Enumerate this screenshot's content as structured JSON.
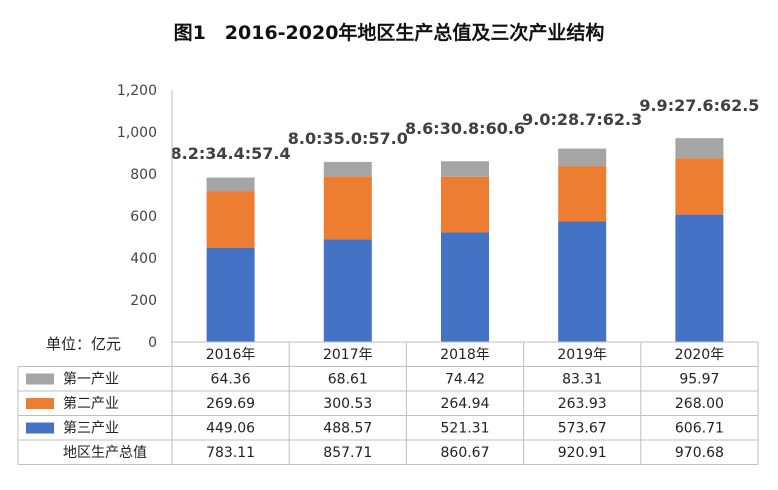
{
  "chart_data": {
    "type": "bar",
    "stacked": true,
    "title": "图1　2016-2020年地区生产总值及三次产业结构",
    "unit_label": "单位：亿元",
    "categories": [
      "2016年",
      "2017年",
      "2018年",
      "2019年",
      "2020年"
    ],
    "ylim": [
      0,
      1200
    ],
    "yticks": [
      "0",
      "200",
      "400",
      "600",
      "800",
      "1,000",
      "1,200"
    ],
    "ytick_values": [
      0,
      200,
      400,
      600,
      800,
      1000,
      1200
    ],
    "ratio_labels": [
      "8.2:34.4:57.4",
      "8.0:35.0:57.0",
      "8.6:30.8:60.6",
      "9.0:28.7:62.3",
      "9.9:27.6:62.5"
    ],
    "series": [
      {
        "name": "第三产业",
        "color": "#4472C4",
        "values": [
          449.06,
          488.57,
          521.31,
          573.67,
          606.71
        ],
        "labels": [
          "449.06",
          "488.57",
          "521.31",
          "573.67",
          "606.71"
        ]
      },
      {
        "name": "第二产业",
        "color": "#ED7D31",
        "values": [
          269.69,
          300.53,
          264.94,
          263.93,
          268.0
        ],
        "labels": [
          "269.69",
          "300.53",
          "264.94",
          "263.93",
          "268.00"
        ]
      },
      {
        "name": "第一产业",
        "color": "#A5A5A5",
        "values": [
          64.36,
          68.61,
          74.42,
          83.31,
          95.97
        ],
        "labels": [
          "64.36",
          "68.61",
          "74.42",
          "83.31",
          "95.97"
        ]
      }
    ],
    "table_rows": [
      {
        "name": "第一产业",
        "color": "#A5A5A5",
        "cells": [
          "64.36",
          "68.61",
          "74.42",
          "83.31",
          "95.97"
        ]
      },
      {
        "name": "第二产业",
        "color": "#ED7D31",
        "cells": [
          "269.69",
          "300.53",
          "264.94",
          "263.93",
          "268.00"
        ]
      },
      {
        "name": "第三产业",
        "color": "#4472C4",
        "cells": [
          "449.06",
          "488.57",
          "521.31",
          "573.67",
          "606.71"
        ]
      },
      {
        "name": "地区生产总值",
        "color": "",
        "cells": [
          "783.11",
          "857.71",
          "860.67",
          "920.91",
          "970.68"
        ]
      }
    ],
    "grid": false,
    "legend": "data-table"
  }
}
